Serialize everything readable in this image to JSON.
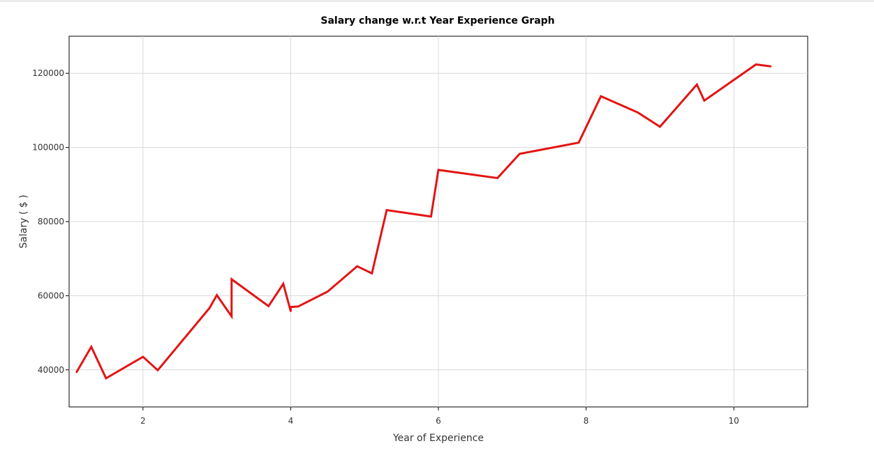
{
  "chart_data": {
    "type": "line",
    "title": "Salary change w.r.t Year Experience Graph",
    "xlabel": "Year of Experience",
    "ylabel": "Salary ( $ )",
    "xlim": [
      1.0,
      11.0
    ],
    "ylim": [
      30000,
      130000
    ],
    "xticks": [
      2,
      4,
      6,
      8,
      10
    ],
    "yticks": [
      40000,
      60000,
      80000,
      100000,
      120000
    ],
    "grid": true,
    "series": [
      {
        "color": "#e31414",
        "x": [
          1.1,
          1.3,
          1.5,
          2.0,
          2.2,
          2.9,
          3.0,
          3.2,
          3.2,
          3.7,
          3.9,
          4.0,
          4.0,
          4.1,
          4.5,
          4.9,
          5.1,
          5.3,
          5.9,
          6.0,
          6.8,
          7.1,
          7.9,
          8.2,
          8.7,
          9.0,
          9.5,
          9.6,
          10.3,
          10.5
        ],
        "y": [
          39343,
          46205,
          37731,
          43525,
          39891,
          56642,
          60150,
          54445,
          64445,
          57189,
          63218,
          55794,
          56957,
          57081,
          61111,
          67938,
          66029,
          83088,
          81363,
          93940,
          91738,
          98273,
          101302,
          113812,
          109431,
          105582,
          116969,
          112635,
          122391,
          121872
        ]
      }
    ]
  }
}
